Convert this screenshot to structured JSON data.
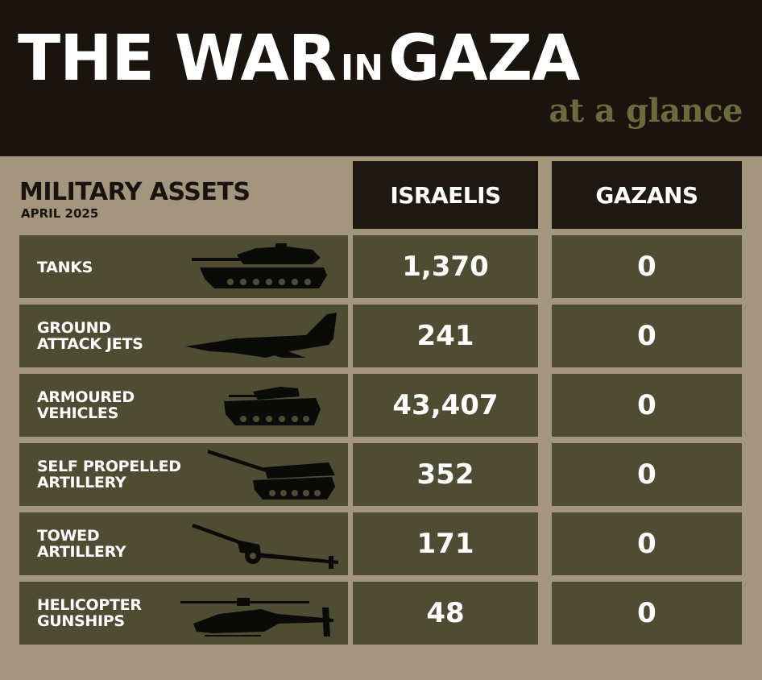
{
  "header": {
    "title_part1": "THE WAR",
    "title_part2": "IN",
    "title_part3": "GAZA",
    "subtitle": "at a glance"
  },
  "table": {
    "section_title": "MILITARY ASSETS",
    "section_date": "APRIL 2025",
    "col_israelis": "ISRAELIS",
    "col_gazans": "GAZANS",
    "rows": [
      {
        "label": "TANKS",
        "icon": "tank-icon",
        "israelis": "1,370",
        "gazans": "0"
      },
      {
        "label": "GROUND\nATTACK JETS",
        "icon": "fighter-jet-icon",
        "israelis": "241",
        "gazans": "0"
      },
      {
        "label": "ARMOURED\nVEHICLES",
        "icon": "armoured-vehicle-icon",
        "israelis": "43,407",
        "gazans": "0"
      },
      {
        "label": "SELF PROPELLED\nARTILLERY",
        "icon": "self-propelled-artillery-icon",
        "israelis": "352",
        "gazans": "0"
      },
      {
        "label": "TOWED\nARTILLERY",
        "icon": "towed-artillery-icon",
        "israelis": "171",
        "gazans": "0"
      },
      {
        "label": "HELICOPTER\nGUNSHIPS",
        "icon": "helicopter-icon",
        "israelis": "48",
        "gazans": "0"
      }
    ]
  },
  "colors": {
    "header_bg": "#1a140e",
    "page_bg": "#a4957f",
    "cell_bg": "#4f4c34",
    "subtitle_olive": "#6f6a3e",
    "text_white": "#ffffff"
  }
}
